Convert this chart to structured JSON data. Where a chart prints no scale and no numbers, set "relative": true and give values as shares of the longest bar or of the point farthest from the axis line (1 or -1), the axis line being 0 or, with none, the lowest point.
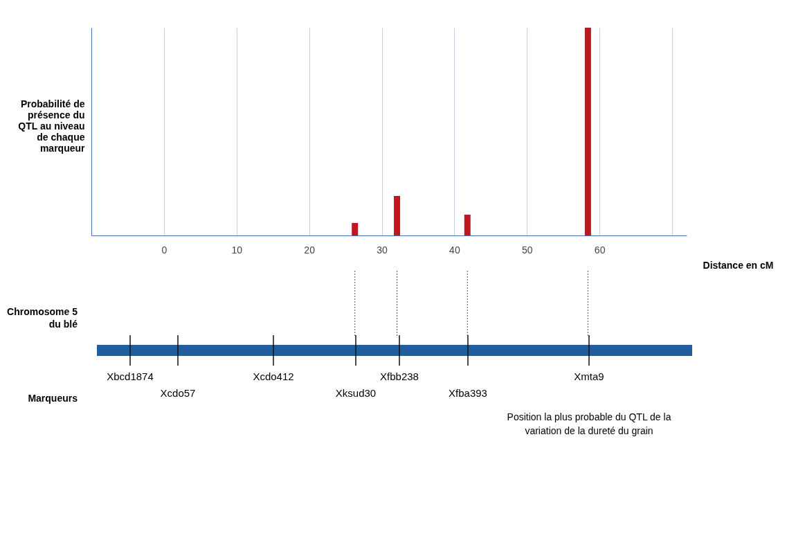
{
  "chart_data": [
    {
      "type": "bar",
      "relative": true,
      "ylabel": "Probabilité de présence du QTL au niveau de chaque marqueur",
      "xlabel": "Distance en cM",
      "x": [
        26.3,
        32.1,
        41.8,
        58.4
      ],
      "values": [
        0.06,
        0.19,
        0.1,
        1
      ],
      "color": "#c0161f",
      "xlim": [
        -10,
        72
      ],
      "xticks": [
        0,
        10,
        20,
        30,
        40,
        50,
        60,
        {
          "value": 70,
          "label": null
        }
      ],
      "grid": "x"
    },
    {
      "type": "other",
      "annotations": [
        "Xbcd1874",
        "Xcdo57",
        "Xcdo412",
        "Xksud30",
        "Xfbb238",
        "Xfba393",
        "Xmta9",
        "Chromosome 5 du blé",
        "Marqueurs",
        "Position la plus probable du QTL de la variation de la dureté du grain"
      ]
    }
  ]
}
